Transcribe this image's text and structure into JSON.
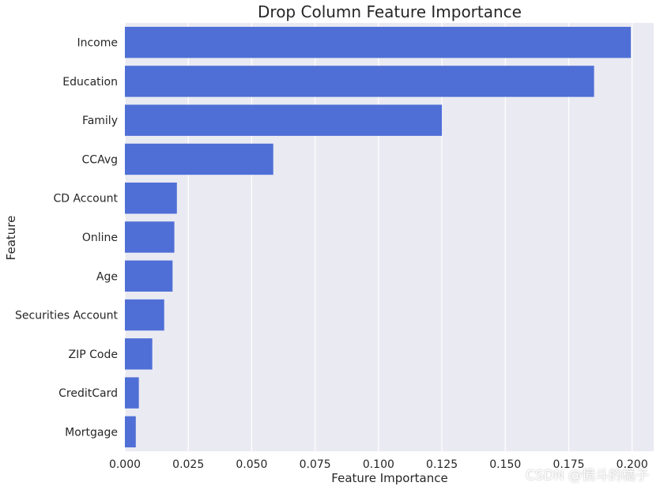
{
  "chart_data": {
    "type": "bar",
    "orientation": "horizontal",
    "title": "Drop Column Feature Importance",
    "xlabel": "Feature Importance",
    "ylabel": "Feature",
    "categories": [
      "Income",
      "Education",
      "Family",
      "CCAvg",
      "CD Account",
      "Online",
      "Age",
      "Securities Account",
      "ZIP Code",
      "CreditCard",
      "Mortgage"
    ],
    "values": [
      0.1995,
      0.185,
      0.125,
      0.0585,
      0.0205,
      0.0195,
      0.0188,
      0.0155,
      0.0108,
      0.0055,
      0.0043
    ],
    "xlim": [
      0,
      0.2085
    ],
    "xticks": [
      0.0,
      0.025,
      0.05,
      0.075,
      0.1,
      0.125,
      0.15,
      0.175,
      0.2
    ],
    "xtick_labels": [
      "0.000",
      "0.025",
      "0.050",
      "0.075",
      "0.100",
      "0.125",
      "0.150",
      "0.175",
      "0.200"
    ],
    "grid": true,
    "bar_color": "#4f6fd6",
    "background_color": "#eaeaf2"
  },
  "watermark": "CSDN @愤斗的橘子"
}
